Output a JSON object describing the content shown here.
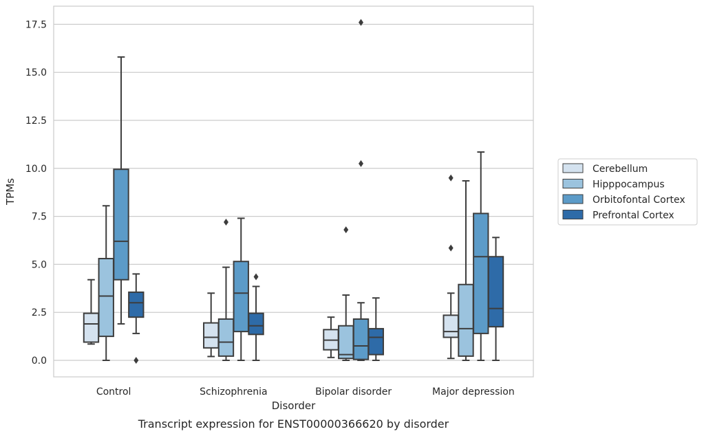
{
  "chart_data": {
    "type": "boxplot",
    "caption": "Transcript expression for ENST00000366620 by disorder",
    "xlabel": "Disorder",
    "ylabel": "TPMs",
    "ylim": [
      -0.85,
      18.45
    ],
    "yticks": [
      "0.0",
      "2.5",
      "5.0",
      "7.5",
      "10.0",
      "12.5",
      "15.0",
      "17.5"
    ],
    "grid": "horizontal",
    "legend_position": "right",
    "categories": [
      "Control",
      "Schizophrenia",
      "Bipolar disorder",
      "Major depression"
    ],
    "series": [
      {
        "name": "Cerebellum",
        "color": "#d4e2ef",
        "boxes": [
          {
            "whislo": 0.85,
            "q1": 0.95,
            "med": 1.9,
            "q3": 2.45,
            "whishi": 4.2,
            "fliers": []
          },
          {
            "whislo": 0.2,
            "q1": 0.65,
            "med": 1.2,
            "q3": 1.95,
            "whishi": 3.5,
            "fliers": []
          },
          {
            "whislo": 0.15,
            "q1": 0.55,
            "med": 1.05,
            "q3": 1.6,
            "whishi": 2.25,
            "fliers": []
          },
          {
            "whislo": 0.1,
            "q1": 1.2,
            "med": 1.5,
            "q3": 2.35,
            "whishi": 3.5,
            "fliers": [
              5.85,
              9.5
            ]
          }
        ]
      },
      {
        "name": "Hipppocampus",
        "color": "#9bc3de",
        "boxes": [
          {
            "whislo": 0.0,
            "q1": 1.25,
            "med": 3.35,
            "q3": 5.3,
            "whishi": 8.05,
            "fliers": []
          },
          {
            "whislo": 0.0,
            "q1": 0.22,
            "med": 0.95,
            "q3": 2.15,
            "whishi": 4.85,
            "fliers": [
              7.2
            ]
          },
          {
            "whislo": 0.0,
            "q1": 0.1,
            "med": 0.3,
            "q3": 1.8,
            "whishi": 3.4,
            "fliers": [
              6.8
            ]
          },
          {
            "whislo": 0.0,
            "q1": 0.22,
            "med": 1.65,
            "q3": 3.95,
            "whishi": 9.35,
            "fliers": []
          }
        ]
      },
      {
        "name": "Orbitofontal Cortex",
        "color": "#5c9bc8",
        "boxes": [
          {
            "whislo": 1.9,
            "q1": 4.2,
            "med": 6.2,
            "q3": 9.95,
            "whishi": 15.8,
            "fliers": []
          },
          {
            "whislo": 0.0,
            "q1": 1.5,
            "med": 3.5,
            "q3": 5.15,
            "whishi": 7.4,
            "fliers": []
          },
          {
            "whislo": 0.0,
            "q1": 0.05,
            "med": 0.75,
            "q3": 2.15,
            "whishi": 3.0,
            "fliers": [
              10.25,
              17.6
            ]
          },
          {
            "whislo": 0.0,
            "q1": 1.4,
            "med": 5.4,
            "q3": 7.65,
            "whishi": 10.85,
            "fliers": []
          }
        ]
      },
      {
        "name": "Prefrontal Cortex",
        "color": "#2e6ba8",
        "boxes": [
          {
            "whislo": 1.4,
            "q1": 2.25,
            "med": 3.0,
            "q3": 3.55,
            "whishi": 4.5,
            "fliers": [
              0.0
            ]
          },
          {
            "whislo": 0.0,
            "q1": 1.35,
            "med": 1.8,
            "q3": 2.45,
            "whishi": 3.85,
            "fliers": [
              4.35
            ]
          },
          {
            "whislo": 0.0,
            "q1": 0.3,
            "med": 1.2,
            "q3": 1.65,
            "whishi": 3.25,
            "fliers": []
          },
          {
            "whislo": 0.0,
            "q1": 1.75,
            "med": 2.7,
            "q3": 5.4,
            "whishi": 6.4,
            "fliers": []
          }
        ]
      }
    ]
  }
}
